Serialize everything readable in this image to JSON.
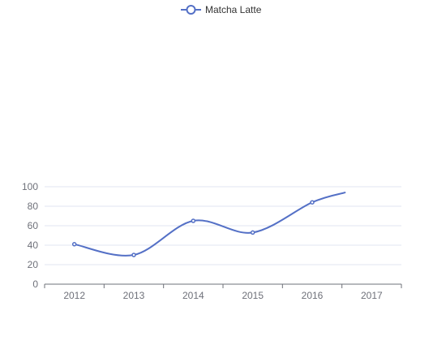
{
  "chart_data": {
    "type": "line",
    "smooth": true,
    "categories": [
      "2012",
      "2013",
      "2014",
      "2015",
      "2016",
      "2017"
    ],
    "series": [
      {
        "name": "Matcha Latte",
        "x": [
          2012,
          2013,
          2014,
          2015,
          2016,
          2016.55
        ],
        "values": [
          41,
          30,
          65,
          53,
          84,
          94
        ],
        "symbols": [
          true,
          true,
          true,
          true,
          true,
          false
        ],
        "color": "#5470c6"
      }
    ],
    "yticks": [
      0,
      20,
      40,
      60,
      80,
      100
    ],
    "ylim": [
      0,
      100
    ],
    "grid": true,
    "legend_position": "top-center"
  }
}
